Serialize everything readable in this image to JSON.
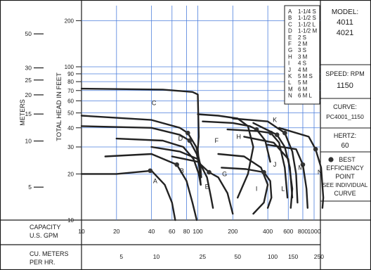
{
  "left_axis": {
    "label": "METERS",
    "ticks": [
      {
        "label": "50",
        "feet": 164
      },
      {
        "label": "30",
        "feet": 98.4
      },
      {
        "label": "25",
        "feet": 82
      },
      {
        "label": "20",
        "feet": 65.6
      },
      {
        "label": "15",
        "feet": 49.2
      },
      {
        "label": "10",
        "feet": 32.8
      },
      {
        "label": "5",
        "feet": 16.4
      }
    ]
  },
  "bottom_rows": {
    "capacity_label_line1": "CAPACITY",
    "capacity_label_line2": "U.S. GPM",
    "meters_label_line1": "CU. METERS",
    "meters_label_line2": "PER HR."
  },
  "legend": [
    {
      "letter": "A",
      "desc": "1-1/4 S"
    },
    {
      "letter": "B",
      "desc": "1-1/2 S"
    },
    {
      "letter": "C",
      "desc": "1-1/2 L"
    },
    {
      "letter": "D",
      "desc": "1-1/2 M"
    },
    {
      "letter": "E",
      "desc": "2 S"
    },
    {
      "letter": "F",
      "desc": "2 M"
    },
    {
      "letter": "G",
      "desc": "3 S"
    },
    {
      "letter": "H",
      "desc": "3 M"
    },
    {
      "letter": "I",
      "desc": "4 S"
    },
    {
      "letter": "J",
      "desc": "4 M"
    },
    {
      "letter": "K",
      "desc": "5 M S"
    },
    {
      "letter": "L",
      "desc": "5 M"
    },
    {
      "letter": "M",
      "desc": "6 M"
    },
    {
      "letter": "N",
      "desc": "6 M L"
    }
  ],
  "info": {
    "model_label": "MODEL:",
    "model_1": "4011",
    "model_2": "4021",
    "speed_label": "SPEED: RPM",
    "speed_value": "1150",
    "curve_label": "CURVE:",
    "curve_value": "PC4001_1150",
    "hertz_label": "HERTZ:",
    "hertz_value": "60",
    "bep_line1": "BEST",
    "bep_line2": "EFFICIENCY",
    "bep_line3": "POINT",
    "bep_line4": "SEE INDIVIDUAL",
    "bep_line5": "CURVE"
  },
  "chart_data": {
    "type": "line",
    "scale": "log-log",
    "ylabel": "TOTAL HEAD IN FEET",
    "xlabel": "U.S. GPM",
    "xlim": [
      10,
      1300
    ],
    "ylim": [
      10,
      230
    ],
    "x_ticks": [
      10,
      20,
      40,
      60,
      80,
      100,
      200,
      400,
      600,
      800,
      1000
    ],
    "x2_ticks_m3h": [
      5,
      10,
      25,
      50,
      100,
      150,
      250
    ],
    "y_ticks": [
      10,
      20,
      30,
      40,
      50,
      60,
      70,
      80,
      90,
      100,
      200
    ],
    "grid": true,
    "series": [
      {
        "name": "A",
        "label_at": [
          43,
          18
        ],
        "bep": [
          39,
          21
        ],
        "points": [
          [
            10,
            20
          ],
          [
            20,
            20
          ],
          [
            40,
            21
          ],
          [
            52,
            17
          ],
          [
            60,
            13
          ],
          [
            64,
            10
          ]
        ]
      },
      {
        "name": "B",
        "label_at": [
          73,
          21
        ],
        "bep": [
          66,
          23
        ],
        "points": [
          [
            16,
            26
          ],
          [
            40,
            27
          ],
          [
            66,
            23
          ],
          [
            80,
            18
          ],
          [
            90,
            13
          ],
          [
            98,
            10
          ]
        ]
      },
      {
        "name": "C",
        "label_at": [
          42,
          58
        ],
        "points": [
          [
            10,
            72
          ],
          [
            50,
            71
          ],
          [
            90,
            68.5
          ],
          [
            100,
            66
          ],
          [
            102,
            35
          ],
          [
            100,
            29
          ],
          [
            103,
            22
          ],
          [
            106,
            17
          ]
        ]
      },
      {
        "name": "D",
        "label_at": [
          71,
          34
        ],
        "bep": [
          82,
          37
        ],
        "points": [
          [
            10,
            48
          ],
          [
            40,
            45
          ],
          [
            70,
            40
          ],
          [
            82,
            37
          ],
          [
            97,
            30
          ],
          [
            105,
            23
          ],
          [
            107,
            19
          ]
        ]
      },
      {
        "name": "D",
        "bep": [
          85,
          33
        ],
        "points": [
          [
            10,
            41
          ],
          [
            40,
            40
          ],
          [
            70,
            36
          ],
          [
            85,
            33
          ],
          [
            98,
            27
          ],
          [
            105,
            21
          ]
        ]
      },
      {
        "name": "D",
        "points": [
          [
            20,
            34
          ],
          [
            50,
            33
          ],
          [
            75,
            30
          ],
          [
            92,
            25
          ],
          [
            102,
            20
          ],
          [
            106,
            17
          ]
        ]
      },
      {
        "name": "E",
        "label_at": [
          120,
          16.5
        ],
        "points": [
          [
            40,
            30
          ],
          [
            70,
            28
          ],
          [
            100,
            25
          ],
          [
            120,
            19
          ],
          [
            130,
            14
          ],
          [
            135,
            12
          ]
        ]
      },
      {
        "name": "G",
        "label_at": [
          170,
          20
        ],
        "bep": [
          125,
          20.5
        ],
        "points": [
          [
            60,
            26
          ],
          [
            100,
            24
          ],
          [
            125,
            20.5
          ],
          [
            150,
            19
          ],
          [
            180,
            15
          ],
          [
            200,
            11
          ]
        ]
      },
      {
        "name": "F",
        "label_at": [
          145,
          33
        ],
        "points": [
          [
            100,
            49
          ],
          [
            150,
            48
          ],
          [
            220,
            46
          ],
          [
            270,
            41
          ],
          [
            300,
            30
          ],
          [
            270,
            20
          ],
          [
            220,
            14
          ]
        ]
      },
      {
        "name": "H",
        "label_at": [
          225,
          35
        ],
        "bep": [
          320,
          39
        ],
        "points": [
          [
            110,
            44
          ],
          [
            200,
            43
          ],
          [
            280,
            41
          ],
          [
            320,
            39
          ],
          [
            380,
            33
          ],
          [
            420,
            24
          ]
        ]
      },
      {
        "name": "I",
        "label_at": [
          320,
          16
        ],
        "points": [
          [
            150,
            27
          ],
          [
            250,
            26
          ],
          [
            350,
            22
          ],
          [
            400,
            17
          ],
          [
            370,
            13
          ],
          [
            300,
            11
          ]
        ]
      },
      {
        "name": "I",
        "bep": [
          370,
          20.5
        ],
        "points": [
          [
            160,
            22
          ],
          [
            260,
            21.5
          ],
          [
            370,
            20.5
          ],
          [
            420,
            18
          ],
          [
            430,
            14
          ],
          [
            400,
            12
          ]
        ]
      },
      {
        "name": "J",
        "label_at": [
          460,
          23
        ],
        "bep": [
          425,
          37
        ],
        "points": [
          [
            180,
            39
          ],
          [
            330,
            38
          ],
          [
            425,
            37
          ],
          [
            500,
            32
          ],
          [
            560,
            22
          ],
          [
            590,
            14
          ]
        ]
      },
      {
        "name": "K",
        "label_at": [
          460,
          45
        ],
        "bep": [
          560,
          37
        ],
        "points": [
          [
            200,
            46
          ],
          [
            400,
            44
          ],
          [
            560,
            37
          ],
          [
            650,
            28
          ],
          [
            700,
            20
          ],
          [
            720,
            13
          ]
        ]
      },
      {
        "name": "K",
        "bep": [
          480,
          36
        ],
        "points": [
          [
            300,
            43
          ],
          [
            480,
            36
          ],
          [
            560,
            30
          ],
          [
            620,
            22
          ],
          [
            650,
            14
          ]
        ]
      },
      {
        "name": "L",
        "label_at": [
          540,
          16
        ],
        "points": [
          [
            250,
            35
          ],
          [
            450,
            32
          ],
          [
            600,
            25
          ],
          [
            650,
            16
          ],
          [
            630,
            12
          ]
        ]
      },
      {
        "name": "M",
        "label_at": [
          770,
          22
        ],
        "bep": [
          800,
          23
        ],
        "points": [
          [
            400,
            31
          ],
          [
            700,
            29
          ],
          [
            800,
            23
          ],
          [
            860,
            16
          ],
          [
            880,
            12
          ]
        ]
      },
      {
        "name": "N",
        "label_at": [
          1120,
          20.5
        ],
        "bep": [
          1030,
          29
        ],
        "points": [
          [
            500,
            40
          ],
          [
            900,
            35
          ],
          [
            1030,
            29
          ],
          [
            1150,
            22
          ],
          [
            1200,
            14
          ],
          [
            1180,
            12
          ]
        ]
      }
    ]
  }
}
